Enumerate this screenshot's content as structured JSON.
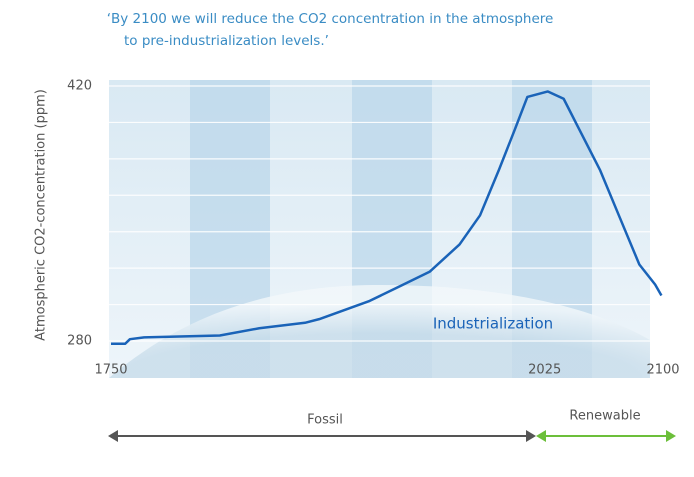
{
  "chart_data": {
    "type": "line",
    "title_lines": [
      "‘By 2100 we will reduce the CO2 concentration in the atmosphere",
      "to pre-industrialization levels.’"
    ],
    "y_label": "Atmospheric CO2-concentration (ppm)",
    "annotation": "Industrialization",
    "phases": [
      "Fossil",
      "Renewable"
    ],
    "x": [
      1750,
      1759,
      1762,
      1771,
      1819,
      1844,
      1873,
      1882,
      1898,
      1914,
      1933,
      1952,
      1971,
      1984,
      1996,
      2006,
      2014,
      2027,
      2037,
      2047,
      2060,
      2072,
      2085,
      2095,
      2099
    ],
    "series": [
      {
        "name": "CO2",
        "color": "#1a63b8",
        "values": [
          278.5,
          278.5,
          281,
          282,
          283,
          287,
          290,
          292,
          297,
          302,
          310,
          318,
          333,
          349,
          374,
          396,
          414,
          417,
          413,
          396,
          374,
          349,
          322,
          311,
          305
        ]
      }
    ],
    "xlim": [
      1750,
      2100
    ],
    "xticks": [
      1750,
      2025,
      2100
    ],
    "ylim": [
      280,
      420
    ],
    "yticks": [
      280,
      420
    ],
    "ygrid": [
      280,
      300,
      320,
      340,
      360,
      380,
      400,
      420
    ],
    "grid": true
  }
}
